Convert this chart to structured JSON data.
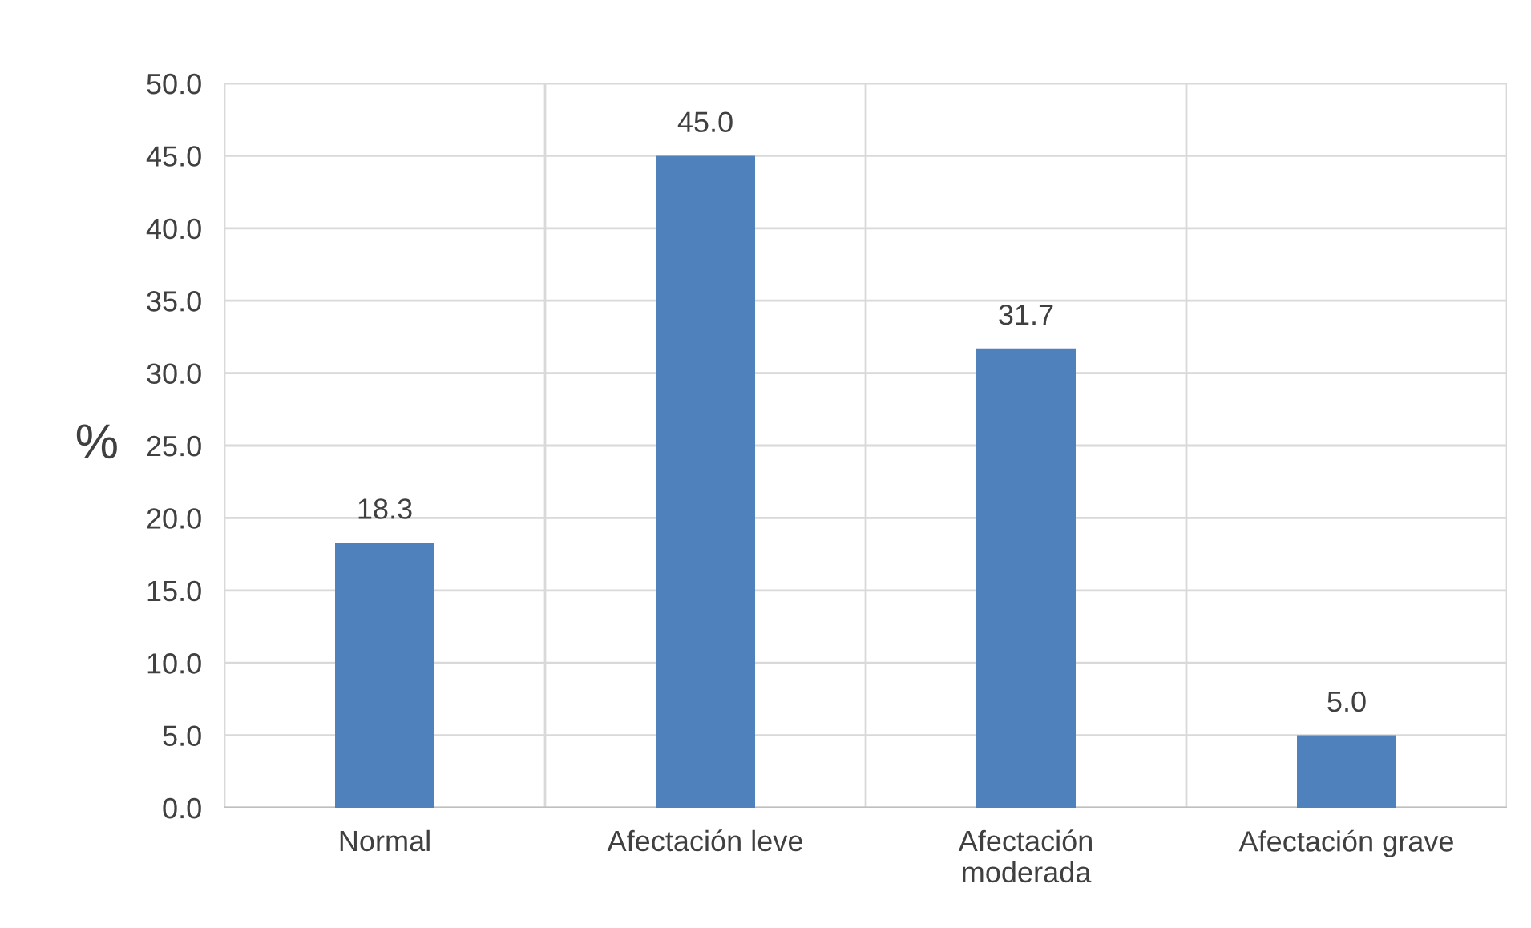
{
  "chart_data": {
    "type": "bar",
    "ylabel": "%",
    "categories": [
      "Normal",
      "Afectación leve",
      "Afectación\nmoderada",
      "Afectación grave"
    ],
    "values": [
      18.3,
      45.0,
      31.7,
      5.0
    ],
    "value_labels": [
      "18.3",
      "45.0",
      "31.7",
      "5.0"
    ],
    "color": "#4f81bd",
    "ylim": [
      0,
      50
    ],
    "yticks": [
      {
        "value": 0,
        "label": "0.0"
      },
      {
        "value": 5,
        "label": "5.0"
      },
      {
        "value": 10,
        "label": "10.0"
      },
      {
        "value": 15,
        "label": "15.0"
      },
      {
        "value": 20,
        "label": "20.0"
      },
      {
        "value": 25,
        "label": "25.0"
      },
      {
        "value": 30,
        "label": "30.0"
      },
      {
        "value": 35,
        "label": "35.0"
      },
      {
        "value": 40,
        "label": "40.0"
      },
      {
        "value": 45,
        "label": "45.0"
      },
      {
        "value": 50,
        "label": "50.0"
      }
    ],
    "grid": true
  }
}
